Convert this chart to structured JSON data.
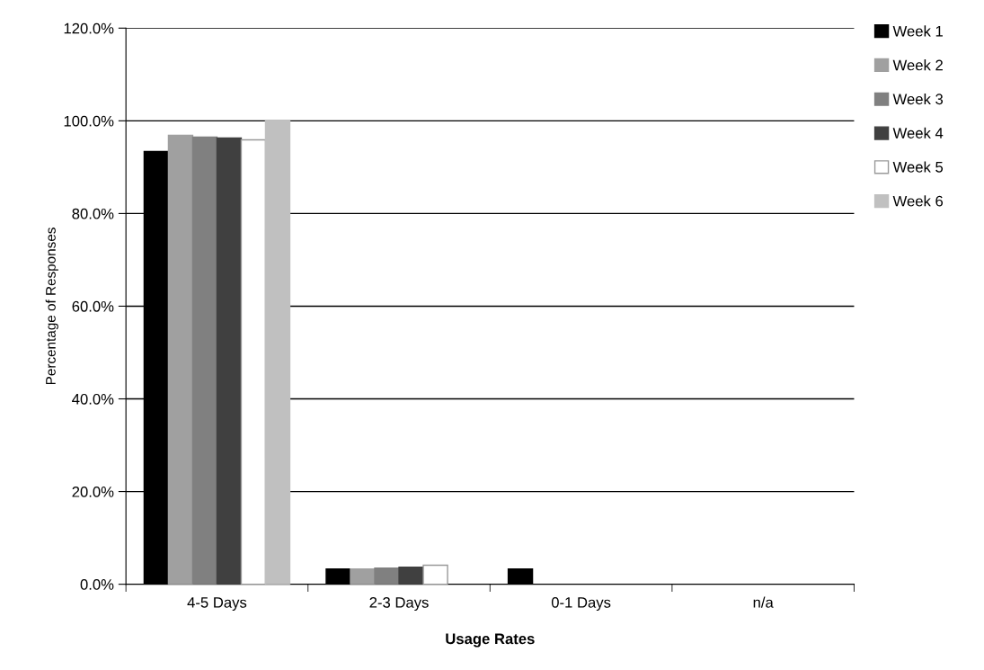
{
  "chart_data": {
    "type": "bar",
    "xlabel": "Usage Rates",
    "ylabel": "Percentage of Responses",
    "categories": [
      "4-5 Days",
      "2-3 Days",
      "0-1 Days",
      "n/a"
    ],
    "series": [
      {
        "name": "Week 1",
        "color": "#000000",
        "values": [
          93.4,
          3.3,
          3.3,
          0
        ]
      },
      {
        "name": "Week 2",
        "color": "#a0a0a0",
        "values": [
          96.9,
          3.3,
          0,
          0
        ]
      },
      {
        "name": "Week 3",
        "color": "#808080",
        "values": [
          96.5,
          3.5,
          0,
          0
        ]
      },
      {
        "name": "Week 4",
        "color": "#404040",
        "values": [
          96.3,
          3.7,
          0,
          0
        ]
      },
      {
        "name": "Week 5",
        "color": "#ffffff",
        "values": [
          95.9,
          4.1,
          0,
          0
        ]
      },
      {
        "name": "Week 6",
        "color": "#c0c0c0",
        "values": [
          100,
          0,
          0,
          0
        ]
      }
    ],
    "ylim": [
      0,
      120
    ],
    "yticks": [
      {
        "value": 0,
        "label": "0.0%"
      },
      {
        "value": 20,
        "label": "20.0%"
      },
      {
        "value": 40,
        "label": "40.0%"
      },
      {
        "value": 60,
        "label": "60.0%"
      },
      {
        "value": 80,
        "label": "80.0%"
      },
      {
        "value": 100,
        "label": "100.0%"
      },
      {
        "value": 120,
        "label": "120.0%"
      }
    ],
    "grid": "y",
    "legend": "right"
  }
}
